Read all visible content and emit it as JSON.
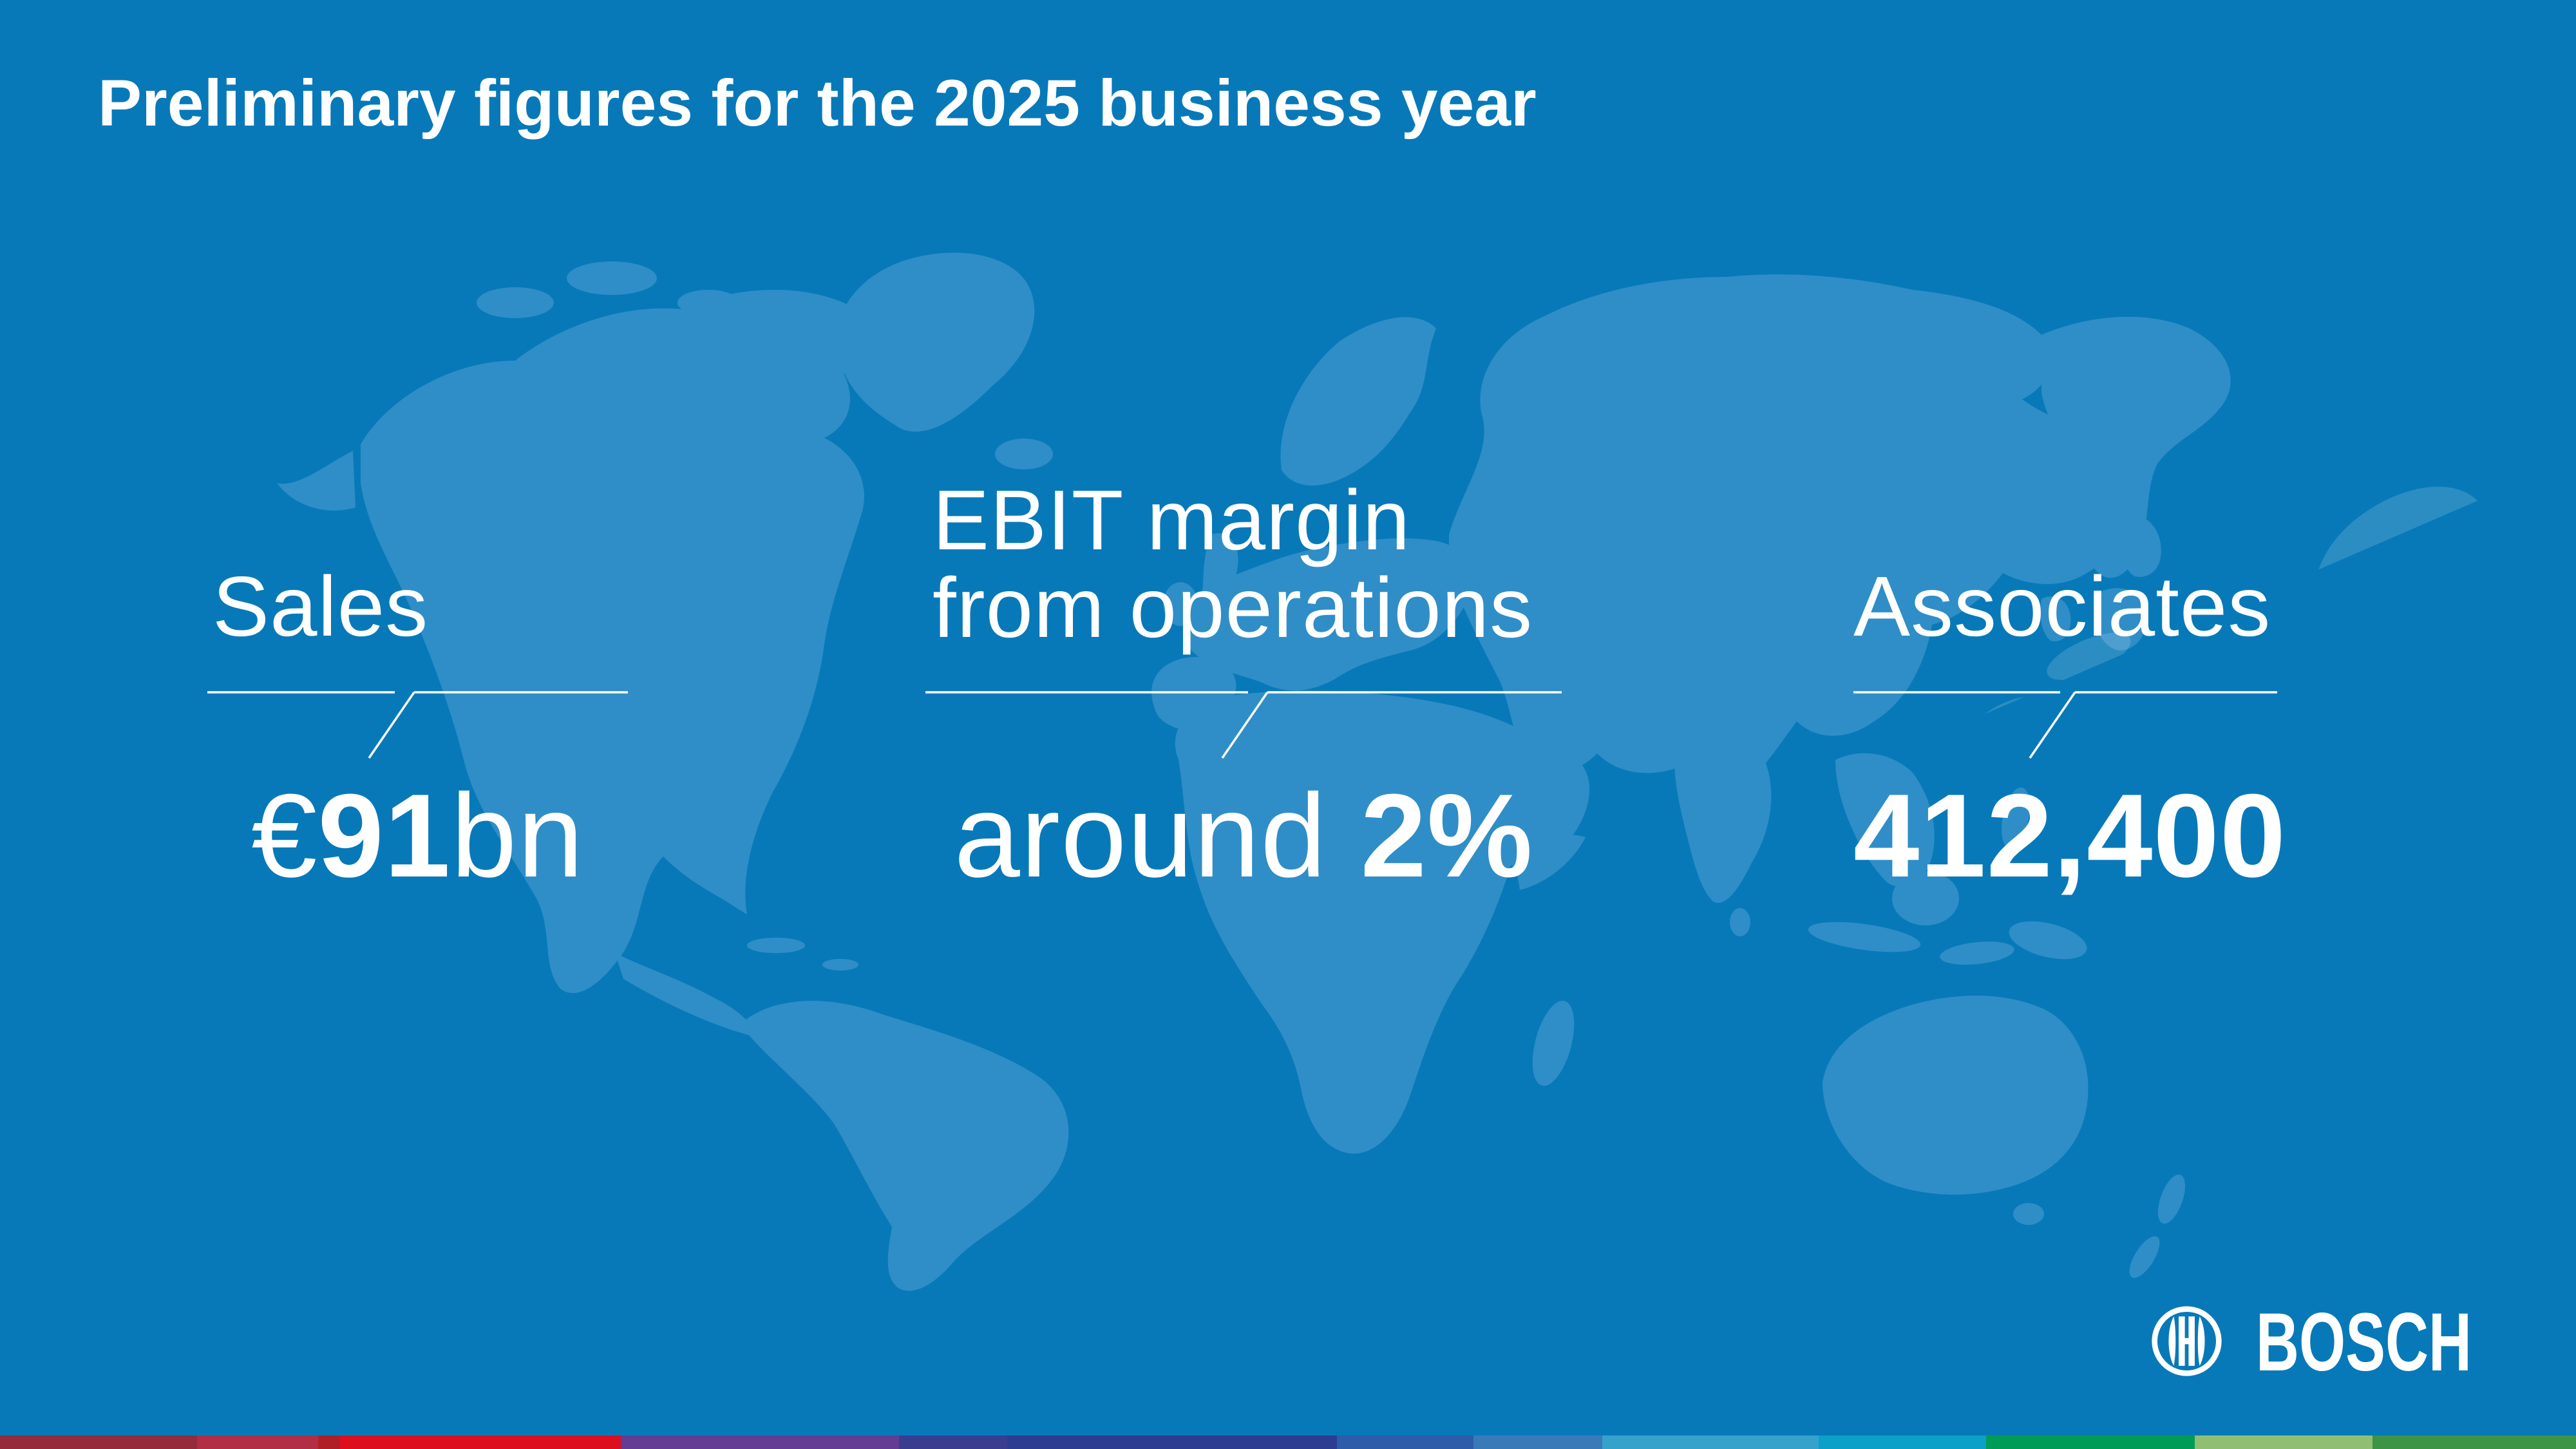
{
  "title": "Preliminary figures for the 2025 business year",
  "stats": [
    {
      "id": "sales",
      "label_lines": [
        "Sales"
      ],
      "value": {
        "prefix": "€",
        "bold": "91",
        "suffix": "bn"
      }
    },
    {
      "id": "ebit-margin",
      "label_lines": [
        "EBIT margin",
        "from operations"
      ],
      "value": {
        "prefix": "around ",
        "bold": "2%",
        "suffix": ""
      }
    },
    {
      "id": "associates",
      "label_lines": [
        "Associates"
      ],
      "value": {
        "prefix": "",
        "bold": "412,400",
        "suffix": ""
      }
    }
  ],
  "logo": {
    "symbol": "bosch-anchor-armature-icon",
    "wordmark": "BOSCH"
  },
  "colors": {
    "background": "#0779b9",
    "map_land": "#2f8ec7",
    "map_highlight": "rgba(255,255,255,0.15)",
    "text": "#ffffff"
  },
  "color_bar": [
    {
      "color": "#962b3c",
      "width": "7.65%"
    },
    {
      "color": "#b12e45",
      "width": "4.70%"
    },
    {
      "color": "#b01f26",
      "width": "0.85%"
    },
    {
      "color": "#dd0e1e",
      "width": "10.90%"
    },
    {
      "color": "#653c94",
      "width": "10.80%"
    },
    {
      "color": "#3a3d8f",
      "width": "4.20%"
    },
    {
      "color": "#2d3c90",
      "width": "12.80%"
    },
    {
      "color": "#2e5ca9",
      "width": "5.30%"
    },
    {
      "color": "#3a7ab8",
      "width": "5.00%"
    },
    {
      "color": "#35a2cc",
      "width": "8.40%"
    },
    {
      "color": "#0aa0c8",
      "width": "6.50%"
    },
    {
      "color": "#009b56",
      "width": "8.10%"
    },
    {
      "color": "#90bf74",
      "width": "6.90%"
    },
    {
      "color": "#3d9346",
      "width": "7.90%"
    }
  ]
}
